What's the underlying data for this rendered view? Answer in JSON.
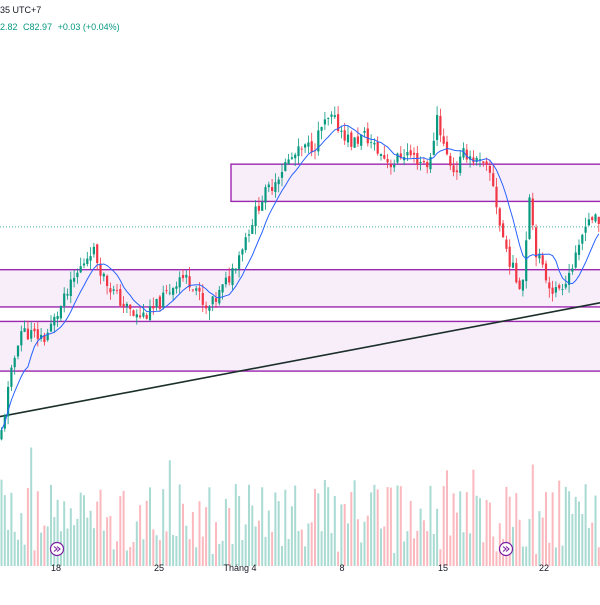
{
  "header": {
    "timezone_text": "35 UTC+7",
    "ohlc_text": "2.82",
    "close_text": "C82.97",
    "change_text": "+0.03 (+0.04%)"
  },
  "colors": {
    "up": "#089981",
    "down": "#f23645",
    "ma": "#2962ff",
    "zone": "#9c27b0",
    "zone_fill": "rgba(156,39,176,0.08)",
    "trendline": "#1a2e2a",
    "price_line": "#089981"
  },
  "icons": [
    "replay-icon",
    "replay-icon"
  ],
  "chart_data": {
    "type": "candlestick",
    "x_tick_labels": [
      "18",
      "25",
      "Tháng 4",
      "8",
      "15",
      "22"
    ],
    "current_price": 82.97,
    "zones": [
      {
        "low": 84.2,
        "high": 86.0
      },
      {
        "low": 79.1,
        "high": 80.9
      },
      {
        "low": 76.0,
        "high": 78.4
      }
    ],
    "trendline": {
      "start": {
        "x": 0,
        "y": 73.8
      },
      "end": {
        "x": 600,
        "y": 79.3
      }
    },
    "ylim": [
      71.8,
      92.0
    ],
    "candles": []
  }
}
